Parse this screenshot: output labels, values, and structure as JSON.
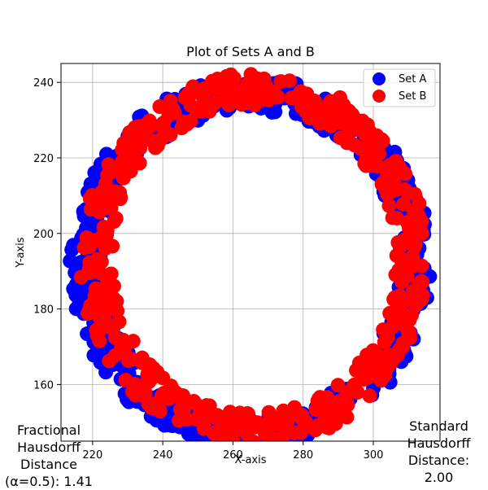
{
  "chart_data": {
    "type": "scatter",
    "title": "Plot of Sets A and B",
    "xlabel": "X-axis",
    "ylabel": "Y-axis",
    "xlim": [
      211,
      319
    ],
    "ylim": [
      145,
      245
    ],
    "xticks": [
      220,
      240,
      260,
      280,
      300
    ],
    "yticks": [
      160,
      180,
      200,
      220,
      240
    ],
    "grid": true,
    "legend_position": "top-right",
    "series": [
      {
        "name": "Set A",
        "color": "#0000ff",
        "shape": "ring",
        "center": [
          265,
          192
        ],
        "radius_x": 47,
        "radius_y": 45,
        "band_half_width": 4.5,
        "points": 520
      },
      {
        "name": "Set B",
        "color": "#ff0000",
        "shape": "ring",
        "center": [
          266,
          193
        ],
        "radius_x": 45,
        "radius_y": 45,
        "band_half_width": 4.5,
        "points": 520
      }
    ]
  },
  "annotations": {
    "fractional": [
      "Fractional",
      "Hausdorff",
      "Distance",
      "(α=0.5): 1.41"
    ],
    "standard": [
      "Standard",
      "Hausdorff",
      "Distance:",
      "2.00"
    ]
  }
}
